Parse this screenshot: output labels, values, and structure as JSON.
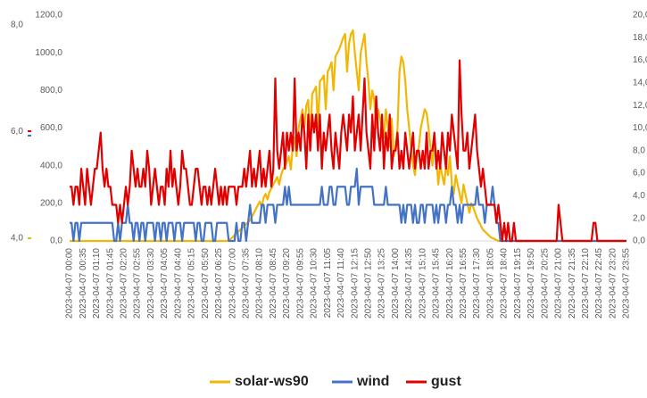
{
  "chart_data": {
    "type": "line",
    "categories": [
      "2023-04-07 00:00",
      null,
      null,
      null,
      null,
      null,
      null,
      "2023-04-07 00:35",
      null,
      null,
      null,
      null,
      null,
      null,
      "2023-04-07 01:10",
      null,
      null,
      null,
      null,
      null,
      null,
      "2023-04-07 01:45",
      null,
      null,
      null,
      null,
      null,
      null,
      "2023-04-07 02:20",
      null,
      null,
      null,
      null,
      null,
      null,
      "2023-04-07 02:55",
      null,
      null,
      null,
      null,
      null,
      null,
      "2023-04-07 03:30",
      null,
      null,
      null,
      null,
      null,
      null,
      "2023-04-07 04:05",
      null,
      null,
      null,
      null,
      null,
      null,
      "2023-04-07 04:40",
      null,
      null,
      null,
      null,
      null,
      null,
      "2023-04-07 05:15",
      null,
      null,
      null,
      null,
      null,
      null,
      "2023-04-07 05:50",
      null,
      null,
      null,
      null,
      null,
      null,
      "2023-04-07 06:25",
      null,
      null,
      null,
      null,
      null,
      null,
      "2023-04-07 07:00",
      null,
      null,
      null,
      null,
      null,
      null,
      "2023-04-07 07:35",
      null,
      null,
      null,
      null,
      null,
      null,
      "2023-04-07 08:10",
      null,
      null,
      null,
      null,
      null,
      null,
      "2023-04-07 08:45",
      null,
      null,
      null,
      null,
      null,
      null,
      "2023-04-07 09:20",
      null,
      null,
      null,
      null,
      null,
      null,
      "2023-04-07 09:55",
      null,
      null,
      null,
      null,
      null,
      null,
      "2023-04-07 10:30",
      null,
      null,
      null,
      null,
      null,
      null,
      "2023-04-07 11:05",
      null,
      null,
      null,
      null,
      null,
      null,
      "2023-04-07 11:40",
      null,
      null,
      null,
      null,
      null,
      null,
      "2023-04-07 12:15",
      null,
      null,
      null,
      null,
      null,
      null,
      "2023-04-07 12:50",
      null,
      null,
      null,
      null,
      null,
      null,
      "2023-04-07 13:25",
      null,
      null,
      null,
      null,
      null,
      null,
      "2023-04-07 14:00",
      null,
      null,
      null,
      null,
      null,
      null,
      "2023-04-07 14:35",
      null,
      null,
      null,
      null,
      null,
      null,
      "2023-04-07 15:10",
      null,
      null,
      null,
      null,
      null,
      null,
      "2023-04-07 15:45",
      null,
      null,
      null,
      null,
      null,
      null,
      "2023-04-07 16:20",
      null,
      null,
      null,
      null,
      null,
      null,
      "2023-04-07 16:55",
      null,
      null,
      null,
      null,
      null,
      null,
      "2023-04-07 17:30",
      null,
      null,
      null,
      null,
      null,
      null,
      "2023-04-07 18:05",
      null,
      null,
      null,
      null,
      null,
      null,
      "2023-04-07 18:40",
      null,
      null,
      null,
      null,
      null,
      null,
      "2023-04-07 19:15",
      null,
      null,
      null,
      null,
      null,
      null,
      "2023-04-07 19:50",
      null,
      null,
      null,
      null,
      null,
      null,
      "2023-04-07 20:25",
      null,
      null,
      null,
      null,
      null,
      null,
      "2023-04-07 21:00",
      null,
      null,
      null,
      null,
      null,
      null,
      "2023-04-07 21:35",
      null,
      null,
      null,
      null,
      null,
      null,
      "2023-04-07 22:10",
      null,
      null,
      null,
      null,
      null,
      null,
      "2023-04-07 22:45",
      null,
      null,
      null,
      null,
      null,
      null,
      "2023-04-07 23:20",
      null,
      null,
      null,
      null,
      null,
      null,
      "2023-04-07 23:55"
    ],
    "series": [
      {
        "name": "solar-ws90",
        "color": "#f2b705",
        "axis": "y",
        "values": [
          0,
          0,
          0,
          0,
          0,
          0,
          0,
          0,
          0,
          0,
          0,
          0,
          0,
          0,
          0,
          0,
          0,
          0,
          0,
          0,
          0,
          0,
          0,
          0,
          0,
          0,
          0,
          0,
          0,
          0,
          0,
          0,
          0,
          0,
          0,
          0,
          0,
          0,
          0,
          0,
          0,
          0,
          0,
          0,
          0,
          0,
          0,
          0,
          0,
          0,
          0,
          0,
          0,
          0,
          0,
          0,
          0,
          0,
          0,
          0,
          0,
          0,
          0,
          0,
          0,
          0,
          0,
          0,
          0,
          0,
          0,
          0,
          0,
          0,
          0,
          0,
          0,
          0,
          0,
          0,
          0,
          0,
          5,
          10,
          20,
          30,
          40,
          50,
          60,
          70,
          80,
          90,
          100,
          110,
          130,
          150,
          170,
          190,
          210,
          180,
          230,
          250,
          220,
          260,
          280,
          300,
          320,
          340,
          300,
          350,
          380,
          400,
          420,
          450,
          380,
          500,
          550,
          450,
          600,
          650,
          700,
          600,
          720,
          750,
          500,
          780,
          800,
          820,
          600,
          850,
          860,
          880,
          700,
          900,
          920,
          950,
          800,
          980,
          1000,
          1020,
          1050,
          1080,
          1100,
          900,
          1050,
          1100,
          1120,
          1000,
          900,
          800,
          1000,
          1050,
          1100,
          950,
          850,
          700,
          800,
          750,
          600,
          700,
          650,
          600,
          550,
          700,
          600,
          500,
          650,
          450,
          500,
          600,
          900,
          980,
          950,
          850,
          700,
          600,
          500,
          400,
          350,
          450,
          500,
          600,
          650,
          700,
          680,
          600,
          500,
          400,
          550,
          450,
          300,
          400,
          350,
          300,
          400,
          350,
          450,
          300,
          250,
          350,
          300,
          250,
          200,
          300,
          250,
          200,
          150,
          200,
          180,
          150,
          120,
          100,
          80,
          60,
          50,
          40,
          30,
          20,
          15,
          10,
          5,
          0,
          0,
          0,
          0,
          0,
          0,
          0,
          0,
          0,
          0,
          0,
          0,
          0,
          0,
          0,
          0,
          0,
          0,
          0,
          0,
          0,
          0,
          0,
          0,
          0,
          0,
          0,
          0,
          0,
          0,
          0,
          0,
          0,
          0,
          0,
          0,
          0,
          0,
          0,
          0,
          0,
          0,
          0,
          0,
          0,
          0,
          0,
          0,
          0,
          0,
          0,
          0,
          0,
          0,
          0,
          0,
          0,
          0,
          0,
          0,
          0,
          0,
          0,
          0,
          0,
          0,
          0
        ]
      },
      {
        "name": "wind",
        "color": "#4472c4",
        "axis": "y2",
        "values": [
          1.6,
          1.6,
          0,
          1.6,
          1.6,
          0,
          1.6,
          1.6,
          1.6,
          1.6,
          1.6,
          1.6,
          1.6,
          1.6,
          1.6,
          1.6,
          1.6,
          1.6,
          1.6,
          1.6,
          1.6,
          1.6,
          1.6,
          0,
          0,
          1.6,
          0,
          1.6,
          1.6,
          1.6,
          3.2,
          1.6,
          1.6,
          0,
          1.6,
          1.6,
          0,
          1.6,
          1.6,
          0,
          1.6,
          1.6,
          1.6,
          1.6,
          0,
          1.6,
          1.6,
          0,
          1.6,
          1.6,
          0,
          1.6,
          1.6,
          1.6,
          0,
          1.6,
          1.6,
          1.6,
          0,
          1.6,
          1.6,
          1.6,
          1.6,
          1.6,
          1.6,
          0,
          1.6,
          1.6,
          0,
          0,
          1.6,
          1.6,
          1.6,
          1.6,
          0,
          0,
          1.6,
          1.6,
          1.6,
          1.6,
          1.6,
          1.6,
          0,
          0,
          0,
          0,
          1.6,
          0,
          0,
          1.6,
          1.6,
          0,
          1.6,
          3.2,
          1.6,
          1.6,
          1.6,
          1.6,
          1.6,
          3.2,
          3.2,
          1.6,
          3.2,
          3.2,
          3.2,
          3.2,
          1.6,
          3.2,
          3.2,
          3.2,
          3.2,
          4.8,
          3.2,
          4.8,
          3.2,
          3.2,
          3.2,
          3.2,
          3.2,
          3.2,
          3.2,
          3.2,
          3.2,
          3.2,
          3.2,
          3.2,
          3.2,
          3.2,
          3.2,
          3.2,
          4.8,
          3.2,
          3.2,
          3.2,
          4.8,
          4.8,
          3.2,
          3.2,
          4.8,
          4.8,
          4.8,
          4.8,
          4.8,
          3.2,
          3.2,
          4.8,
          4.8,
          4.8,
          6.4,
          3.2,
          4.8,
          4.8,
          4.8,
          4.8,
          4.8,
          4.8,
          4.8,
          3.2,
          3.2,
          3.2,
          3.2,
          3.2,
          3.2,
          4.8,
          3.2,
          3.2,
          3.2,
          3.2,
          3.2,
          3.2,
          3.2,
          1.6,
          3.2,
          1.6,
          3.2,
          3.2,
          3.2,
          1.6,
          3.2,
          1.6,
          1.6,
          3.2,
          3.2,
          1.6,
          3.2,
          3.2,
          3.2,
          3.2,
          1.6,
          3.2,
          1.6,
          3.2,
          3.2,
          3.2,
          1.6,
          3.2,
          3.2,
          4.8,
          3.2,
          3.2,
          1.6,
          3.2,
          1.6,
          3.2,
          3.2,
          3.2,
          3.2,
          3.2,
          3.2,
          3.2,
          4.8,
          3.2,
          3.2,
          3.2,
          1.6,
          3.2,
          3.2,
          3.2,
          4.8,
          3.2,
          1.6,
          1.6,
          0,
          0,
          0,
          0,
          0,
          0,
          0,
          0,
          0,
          0,
          0,
          0,
          0,
          0,
          0,
          0,
          0,
          0,
          0,
          0,
          0,
          0,
          0,
          0,
          0,
          0,
          0,
          0,
          0,
          0,
          0,
          0,
          0,
          0,
          0,
          0,
          0,
          0,
          0,
          0,
          0,
          0,
          0,
          0,
          0,
          0,
          0,
          0,
          0,
          0,
          0,
          0,
          0,
          0,
          0,
          0,
          0,
          0,
          0,
          0,
          0,
          0,
          0,
          0,
          0,
          0
        ]
      },
      {
        "name": "gust",
        "color": "#e00000",
        "axis": "y2",
        "values": [
          4.8,
          4.8,
          3.2,
          4.8,
          4.8,
          3.2,
          6.4,
          4.8,
          3.2,
          6.4,
          4.8,
          3.2,
          4.8,
          6.4,
          6.4,
          8,
          9.6,
          6.4,
          4.8,
          6.4,
          4.8,
          4.8,
          3.2,
          3.2,
          3.2,
          1.6,
          3.2,
          1.6,
          3.2,
          4.8,
          3.2,
          4.8,
          8,
          6.4,
          4.8,
          6.4,
          4.8,
          4.8,
          6.4,
          4.8,
          8,
          6.4,
          3.2,
          4.8,
          6.4,
          4.8,
          3.2,
          4.8,
          4.8,
          3.2,
          6.4,
          4.8,
          8,
          4.8,
          6.4,
          4.8,
          3.2,
          4.8,
          8,
          6.4,
          6.4,
          4.8,
          3.2,
          3.2,
          4.8,
          6.4,
          6.4,
          4.8,
          3.2,
          4.8,
          4.8,
          3.2,
          4.8,
          3.2,
          4.8,
          6.4,
          4.8,
          3.2,
          4.8,
          3.2,
          4.8,
          3.2,
          4.8,
          4.8,
          4.8,
          4.8,
          3.2,
          4.8,
          4.8,
          4.8,
          6.4,
          4.8,
          6.4,
          8,
          4.8,
          6.4,
          4.8,
          6.4,
          8,
          4.8,
          6.4,
          4.8,
          6.4,
          8,
          4.8,
          6.4,
          14.4,
          8,
          6.4,
          8,
          9.6,
          6.4,
          9.6,
          8,
          9.6,
          8,
          14.4,
          8,
          9.6,
          8,
          11.2,
          9.6,
          6.4,
          11.2,
          8,
          11.2,
          9.6,
          11.2,
          8,
          11.2,
          6.4,
          9.6,
          8,
          9.6,
          11.2,
          8,
          6.4,
          9.6,
          8,
          6.4,
          9.6,
          11.2,
          9.6,
          8,
          11.2,
          9.6,
          12.8,
          8,
          9.6,
          11.2,
          8,
          11.2,
          14.4,
          9.6,
          8,
          6.4,
          11.2,
          8,
          12.8,
          9.6,
          8,
          11.2,
          6.4,
          9.6,
          8,
          11.2,
          6.4,
          8,
          8,
          9.6,
          6.4,
          8,
          6.4,
          9.6,
          8,
          6.4,
          8,
          9.6,
          6.4,
          8,
          8,
          6.4,
          8,
          6.4,
          9.6,
          6.4,
          8,
          8,
          9.6,
          6.4,
          8,
          6.4,
          9.6,
          8,
          6.4,
          9.6,
          8,
          11.2,
          9.6,
          8,
          6.4,
          16,
          11.2,
          8,
          8,
          9.6,
          6.4,
          8,
          9.6,
          11.2,
          8,
          6.4,
          4.8,
          6.4,
          4.8,
          3.2,
          3.2,
          3.2,
          3.2,
          3.2,
          1.6,
          3.2,
          1.6,
          0,
          1.6,
          0,
          1.6,
          0,
          0,
          1.6,
          0,
          0,
          0,
          0,
          0,
          0,
          0,
          0,
          0,
          0,
          0,
          0,
          0,
          0,
          0,
          0,
          0,
          0,
          0,
          0,
          0,
          0,
          3.2,
          1.6,
          0,
          0,
          0,
          0,
          0,
          0,
          0,
          0,
          0,
          0,
          0,
          0,
          0,
          0,
          0,
          0,
          1.6,
          1.6,
          0,
          0,
          0,
          0,
          0,
          0,
          0,
          0,
          0,
          0,
          0,
          0,
          0,
          0,
          0,
          0
        ]
      }
    ],
    "ylim": [
      0,
      1200
    ],
    "yticks": [
      {
        "value": 0,
        "label": "0,0"
      },
      {
        "value": 200,
        "label": "200,0"
      },
      {
        "value": 400,
        "label": "400,0"
      },
      {
        "value": 600,
        "label": "600,0"
      },
      {
        "value": 800,
        "label": "800,0"
      },
      {
        "value": 1000,
        "label": "1000,0"
      },
      {
        "value": 1200,
        "label": "1200,0"
      }
    ],
    "y2lim": [
      0,
      20
    ],
    "y2ticks": [
      {
        "value": 0,
        "label": "0,0"
      },
      {
        "value": 2,
        "label": "2,0"
      },
      {
        "value": 4,
        "label": "4,0"
      },
      {
        "value": 6,
        "label": "6,0"
      },
      {
        "value": 8,
        "label": "8,0"
      },
      {
        "value": 10,
        "label": "10,0"
      },
      {
        "value": 12,
        "label": "12,0"
      },
      {
        "value": 14,
        "label": "14,0"
      },
      {
        "value": 16,
        "label": "16,0"
      },
      {
        "value": 18,
        "label": "18,0"
      },
      {
        "value": 20,
        "label": "20,0"
      }
    ],
    "grid": false,
    "legend": "bottom",
    "left_fragment": {
      "ylim": [
        4,
        8
      ],
      "yticks": [
        {
          "value": 4,
          "label": "4,0"
        },
        {
          "value": 6,
          "label": "6,0"
        },
        {
          "value": 8,
          "label": "8,0"
        }
      ]
    }
  }
}
